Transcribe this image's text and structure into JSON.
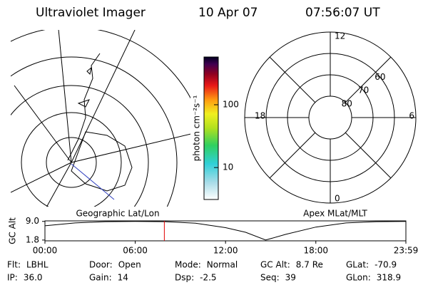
{
  "header": {
    "title": "Ultraviolet Imager",
    "date": "10 Apr 07",
    "time": "07:56:07 UT"
  },
  "colorbar": {
    "label": "photon cm⁻²s⁻¹",
    "log": true,
    "range": [
      3.1,
      575
    ],
    "ticks": [
      10,
      100
    ]
  },
  "left_map": {
    "label": "Geographic Lat/Lon"
  },
  "right_map": {
    "label": "Apex MLat/MLT",
    "lat_range": [
      50,
      90
    ],
    "lat_circles": [
      80,
      70,
      60
    ],
    "mlt_labels": [
      12,
      18,
      6,
      0
    ],
    "lat_labels": [
      60,
      70,
      80
    ]
  },
  "altitude_plot": {
    "y_axis_label": "GC Alt",
    "ylim": [
      1.5,
      9.2
    ],
    "yticks": [
      {
        "value": 9,
        "label": "9.0"
      },
      1.8
    ],
    "xlim": [
      0,
      1439
    ],
    "xticks": [
      {
        "value": 0,
        "label": "00:00"
      },
      {
        "value": 360,
        "label": "06:00"
      },
      {
        "value": 720,
        "label": "12:00"
      },
      {
        "value": 1080,
        "label": "18:00"
      },
      {
        "value": 1439,
        "label": "23:59"
      }
    ],
    "x": [
      0,
      120,
      240,
      360,
      480,
      600,
      720,
      800,
      880,
      960,
      1080,
      1200,
      1320,
      1439
    ],
    "values": [
      7.3,
      8.4,
      8.9,
      9.0,
      8.9,
      8.3,
      6.6,
      4.8,
      1.8,
      4.0,
      6.8,
      8.4,
      8.9,
      9.0
    ],
    "color": "#000000",
    "marker_time": 476,
    "marker_color": "#e00000"
  },
  "info": {
    "rows": [
      [
        {
          "label": "Flt:",
          "value": "LBHL"
        },
        {
          "label": "Door:",
          "value": "Open"
        },
        {
          "label": "Mode:",
          "value": "Normal"
        },
        {
          "label": "GC Alt:",
          "value": "8.7 Re"
        },
        {
          "label": "GLat:",
          "value": "-70.9"
        }
      ],
      [
        {
          "label": "IP:",
          "value": "36.0"
        },
        {
          "label": "Gain:",
          "value": "14"
        },
        {
          "label": "Dsp:",
          "value": "-2.5"
        },
        {
          "label": "Seq:",
          "value": "39"
        },
        {
          "label": "GLon:",
          "value": "318.9"
        }
      ]
    ]
  }
}
